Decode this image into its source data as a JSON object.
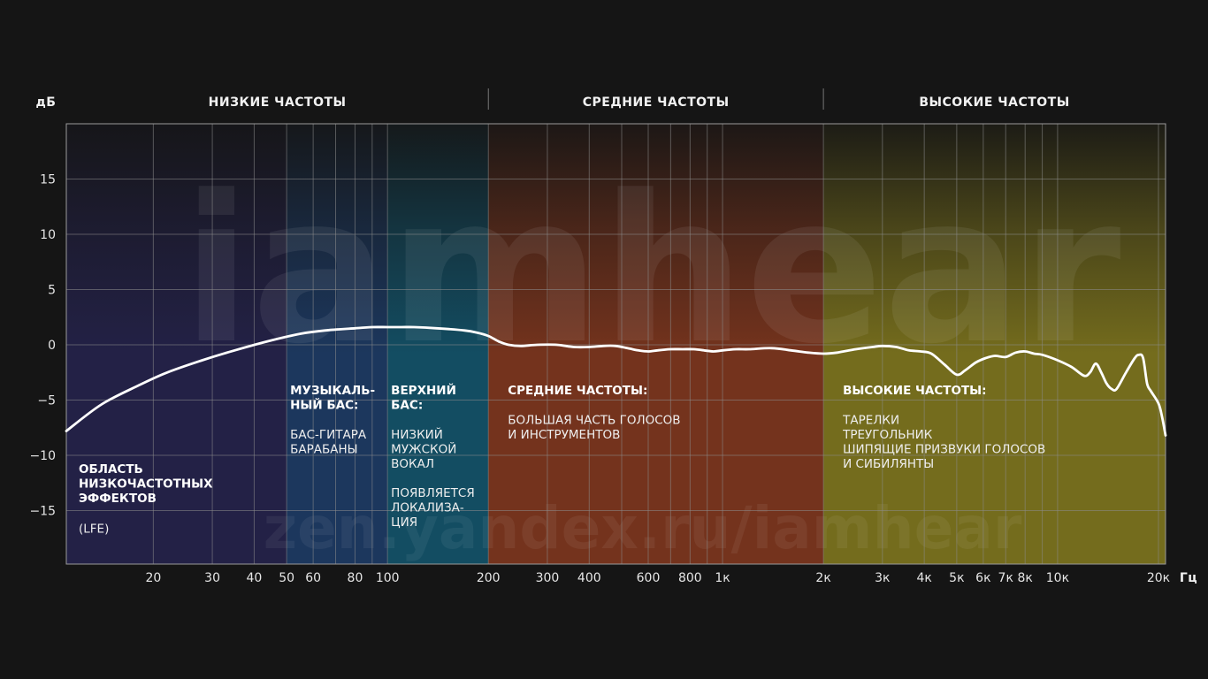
{
  "chart_data": {
    "type": "line",
    "title": "",
    "xlabel": "Гц",
    "ylabel": "дБ",
    "x_scale": "log",
    "xlim": [
      11,
      21000
    ],
    "ylim": [
      -20,
      20
    ],
    "x_ticks": [
      {
        "value": 20,
        "label": "20"
      },
      {
        "value": 30,
        "label": "30"
      },
      {
        "value": 40,
        "label": "40"
      },
      {
        "value": 50,
        "label": "50"
      },
      {
        "value": 60,
        "label": "60"
      },
      {
        "value": 80,
        "label": "80"
      },
      {
        "value": 100,
        "label": "100"
      },
      {
        "value": 200,
        "label": "200"
      },
      {
        "value": 300,
        "label": "300"
      },
      {
        "value": 400,
        "label": "400"
      },
      {
        "value": 600,
        "label": "600"
      },
      {
        "value": 800,
        "label": "800"
      },
      {
        "value": 1000,
        "label": "1к"
      },
      {
        "value": 2000,
        "label": "2к"
      },
      {
        "value": 3000,
        "label": "3к"
      },
      {
        "value": 4000,
        "label": "4к"
      },
      {
        "value": 5000,
        "label": "5к"
      },
      {
        "value": 6000,
        "label": "6к"
      },
      {
        "value": 7000,
        "label": "7к"
      },
      {
        "value": 8000,
        "label": "8к"
      },
      {
        "value": 10000,
        "label": "10к"
      },
      {
        "value": 20000,
        "label": "20к"
      }
    ],
    "y_ticks": [
      {
        "value": 15,
        "label": "15"
      },
      {
        "value": 10,
        "label": "10"
      },
      {
        "value": 5,
        "label": "5"
      },
      {
        "value": 0,
        "label": "0"
      },
      {
        "value": -5,
        "label": "−5"
      },
      {
        "value": -10,
        "label": "−10"
      },
      {
        "value": -15,
        "label": "−15"
      }
    ],
    "grid_x": [
      20,
      30,
      40,
      50,
      60,
      70,
      80,
      90,
      100,
      200,
      300,
      400,
      500,
      600,
      700,
      800,
      900,
      1000,
      2000,
      3000,
      4000,
      5000,
      6000,
      7000,
      8000,
      9000,
      10000,
      20000
    ],
    "grid_y": [
      15,
      10,
      5,
      0,
      -5,
      -10,
      -15
    ],
    "series": [
      {
        "name": "frequency response",
        "x": [
          11,
          14,
          18,
          22,
          28,
          35,
          45,
          55,
          65,
          80,
          90,
          100,
          110,
          120,
          140,
          170,
          185,
          200,
          215,
          230,
          250,
          280,
          320,
          360,
          400,
          440,
          480,
          520,
          560,
          600,
          640,
          700,
          760,
          820,
          880,
          940,
          1000,
          1100,
          1200,
          1400,
          1600,
          1800,
          2000,
          2200,
          2500,
          2800,
          3000,
          3300,
          3600,
          3900,
          4200,
          4600,
          5000,
          5300,
          5700,
          6100,
          6500,
          7000,
          7500,
          8000,
          8500,
          9000,
          10000,
          11000,
          12000,
          12500,
          13000,
          13500,
          14000,
          14500,
          15000,
          16000,
          17000,
          17500,
          18000,
          18500,
          19000,
          20000,
          20500,
          21000
        ],
        "y": [
          -7.8,
          -5.4,
          -3.7,
          -2.5,
          -1.4,
          -0.5,
          0.4,
          1.0,
          1.3,
          1.5,
          1.6,
          1.6,
          1.6,
          1.6,
          1.5,
          1.3,
          1.1,
          0.8,
          0.3,
          0.0,
          -0.1,
          0.0,
          0.0,
          -0.2,
          -0.2,
          -0.1,
          -0.1,
          -0.3,
          -0.5,
          -0.6,
          -0.5,
          -0.4,
          -0.4,
          -0.4,
          -0.5,
          -0.6,
          -0.5,
          -0.4,
          -0.4,
          -0.3,
          -0.5,
          -0.7,
          -0.8,
          -0.7,
          -0.4,
          -0.2,
          -0.1,
          -0.2,
          -0.5,
          -0.6,
          -0.8,
          -1.8,
          -2.7,
          -2.3,
          -1.6,
          -1.2,
          -1.0,
          -1.1,
          -0.7,
          -0.6,
          -0.8,
          -0.9,
          -1.4,
          -2.0,
          -2.8,
          -2.5,
          -1.7,
          -2.5,
          -3.5,
          -4.0,
          -4.0,
          -2.5,
          -1.2,
          -0.9,
          -1.2,
          -3.5,
          -4.2,
          -5.3,
          -6.5,
          -8.2
        ]
      }
    ],
    "regions": [
      {
        "name": "lfe",
        "from": 11,
        "to": 50,
        "color": "#272552",
        "title_lines": [
          "ОБЛАСТЬ",
          "НИЗКОЧАСТОТНЫХ",
          "ЭФФЕКТОВ"
        ],
        "text_lines": [
          "(LFE)"
        ]
      },
      {
        "name": "musical-bass",
        "from": 50,
        "to": 100,
        "color": "#1e3f6e",
        "title_lines": [
          "МУЗЫКАЛЬ-",
          "НЫЙ БАС:"
        ],
        "text_lines": [
          "БАС-ГИТАРА",
          "БАРАБАНЫ"
        ]
      },
      {
        "name": "upper-bass",
        "from": 100,
        "to": 200,
        "color": "#145a74",
        "title_lines": [
          "ВЕРХНИЙ",
          "БАС:"
        ],
        "text_lines": [
          "НИЗКИЙ",
          "МУЖСКОЙ",
          "ВОКАЛ",
          "",
          "ПОЯВЛЯЕТСЯ",
          "ЛОКАЛИЗА-",
          "ЦИЯ"
        ]
      },
      {
        "name": "mid",
        "from": 200,
        "to": 2000,
        "color": "#8a3a20",
        "title_lines": [
          "СРЕДНИЕ ЧАСТОТЫ:"
        ],
        "text_lines": [
          "БОЛЬШАЯ ЧАСТЬ ГОЛОСОВ",
          "И ИНСТРУМЕНТОВ"
        ]
      },
      {
        "name": "high",
        "from": 2000,
        "to": 21000,
        "color": "#8a8020",
        "title_lines": [
          "ВЫСОКИЕ ЧАСТОТЫ:"
        ],
        "text_lines": [
          "ТАРЕЛКИ",
          "ТРЕУГОЛЬНИК",
          "ШИПЯЩИЕ ПРИЗВУКИ ГОЛОСОВ",
          "И СИБИЛЯНТЫ"
        ]
      }
    ],
    "bands": [
      {
        "label": "НИЗКИЕ ЧАСТОТЫ",
        "from": 11,
        "to": 200
      },
      {
        "label": "СРЕДНИЕ ЧАСТОТЫ",
        "from": 200,
        "to": 2000
      },
      {
        "label": "ВЫСОКИЕ ЧАСТОТЫ",
        "from": 2000,
        "to": 21000
      }
    ],
    "band_separators": [
      200,
      2000
    ],
    "watermarks": [
      "iamhear",
      "zen.yandex.ru/iamhear"
    ]
  },
  "colors": {
    "background": "#151515",
    "grid": "#8c8c8c",
    "curve": "#ffffff"
  }
}
